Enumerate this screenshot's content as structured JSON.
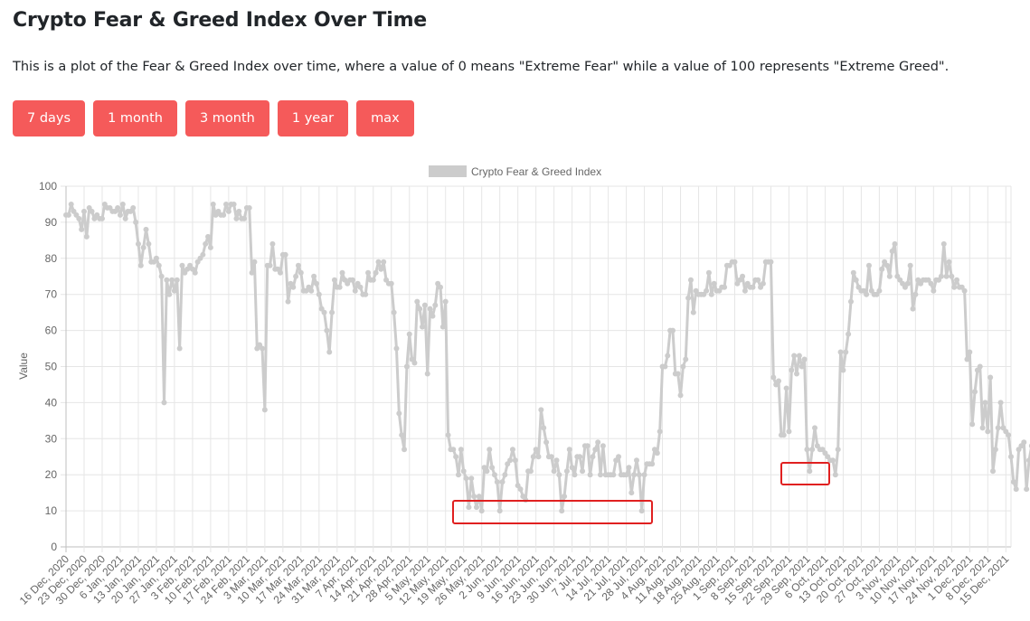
{
  "page": {
    "title": "Crypto Fear & Greed Index Over Time",
    "description": "This is a plot of the Fear & Greed Index over time, where a value of 0 means \"Extreme Fear\" while a value of 100 represents \"Extreme Greed\"."
  },
  "range_buttons": [
    "7 days",
    "1 month",
    "3 month",
    "1 year",
    "max"
  ],
  "colors": {
    "button": "#f55a5a",
    "line": "#cccccc",
    "highlight": "#e02020",
    "grid": "#e6e6e6"
  },
  "chart_data": {
    "type": "line",
    "title": "",
    "legend": {
      "label": "Crypto Fear & Greed Index",
      "position": "top-center"
    },
    "xlabel": "",
    "ylabel": "Value",
    "ylim": [
      0,
      100
    ],
    "yticks": [
      0,
      10,
      20,
      30,
      40,
      50,
      60,
      70,
      80,
      90,
      100
    ],
    "grid": true,
    "x_start": "16 Dec, 2020",
    "x_end": "17 Dec, 2021",
    "x_tick_labels": [
      "16 Dec, 2020",
      "23 Dec, 2020",
      "30 Dec, 2020",
      "6 Jan, 2021",
      "13 Jan, 2021",
      "20 Jan, 2021",
      "27 Jan, 2021",
      "3 Feb, 2021",
      "10 Feb, 2021",
      "17 Feb, 2021",
      "24 Feb, 2021",
      "3 Mar, 2021",
      "10 Mar, 2021",
      "17 Mar, 2021",
      "24 Mar, 2021",
      "31 Mar, 2021",
      "7 Apr, 2021",
      "14 Apr, 2021",
      "21 Apr, 2021",
      "28 Apr, 2021",
      "5 May, 2021",
      "12 May, 2021",
      "19 May, 2021",
      "26 May, 2021",
      "2 Jun, 2021",
      "9 Jun, 2021",
      "16 Jun, 2021",
      "23 Jun, 2021",
      "30 Jun, 2021",
      "7 Jul, 2021",
      "14 Jul, 2021",
      "21 Jul, 2021",
      "28 Jul, 2021",
      "4 Aug, 2021",
      "11 Aug, 2021",
      "18 Aug, 2021",
      "25 Aug, 2021",
      "1 Sep, 2021",
      "8 Sep, 2021",
      "15 Sep, 2021",
      "22 Sep, 2021",
      "29 Sep, 2021",
      "6 Oct, 2021",
      "13 Oct, 2021",
      "20 Oct, 2021",
      "27 Oct, 2021",
      "3 Nov, 2021",
      "10 Nov, 2021",
      "17 Nov, 2021",
      "24 Nov, 2021",
      "1 Dec, 2021",
      "8 Dec, 2021",
      "15 Dec, 2021"
    ],
    "series": [
      {
        "name": "Crypto Fear & Greed Index",
        "values": [
          92,
          92,
          95,
          93,
          92,
          91,
          88,
          93,
          86,
          94,
          93,
          91,
          92,
          91,
          91,
          95,
          94,
          94,
          93,
          93,
          94,
          92,
          95,
          91,
          93,
          93,
          94,
          90,
          84,
          78,
          83,
          88,
          84,
          79,
          79,
          80,
          78,
          75,
          40,
          74,
          70,
          74,
          71,
          74,
          55,
          78,
          76,
          77,
          78,
          77,
          76,
          79,
          80,
          81,
          84,
          86,
          83,
          95,
          92,
          93,
          92,
          92,
          95,
          93,
          95,
          95,
          91,
          93,
          91,
          91,
          94,
          94,
          76,
          79,
          55,
          56,
          55,
          38,
          78,
          78,
          84,
          77,
          77,
          76,
          81,
          81,
          68,
          73,
          72,
          75,
          78,
          76,
          71,
          71,
          72,
          71,
          75,
          73,
          70,
          66,
          65,
          60,
          54,
          65,
          74,
          72,
          72,
          76,
          74,
          73,
          74,
          74,
          71,
          73,
          72,
          70,
          70,
          76,
          74,
          74,
          76,
          79,
          77,
          79,
          74,
          73,
          73,
          65,
          55,
          37,
          31,
          27,
          50,
          59,
          52,
          51,
          68,
          66,
          61,
          67,
          48,
          66,
          64,
          67,
          73,
          72,
          61,
          68,
          31,
          27,
          27,
          25,
          20,
          27,
          21,
          19,
          11,
          19,
          14,
          11,
          14,
          10,
          22,
          21,
          27,
          22,
          20,
          18,
          10,
          18,
          20,
          23,
          24,
          27,
          24,
          17,
          16,
          14,
          13,
          21,
          21,
          25,
          27,
          25,
          38,
          33,
          29,
          25,
          25,
          21,
          24,
          20,
          10,
          14,
          21,
          27,
          22,
          20,
          25,
          25,
          21,
          28,
          28,
          20,
          25,
          27,
          29,
          20,
          28,
          20,
          20,
          20,
          20,
          24,
          25,
          20,
          20,
          20,
          22,
          15,
          20,
          24,
          20,
          10,
          20,
          23,
          23,
          23,
          27,
          26,
          32,
          50,
          50,
          53,
          60,
          60,
          48,
          48,
          42,
          50,
          52,
          69,
          74,
          65,
          71,
          70,
          70,
          70,
          71,
          76,
          70,
          73,
          71,
          71,
          72,
          72,
          78,
          78,
          79,
          79,
          73,
          74,
          75,
          71,
          73,
          72,
          72,
          74,
          74,
          72,
          73,
          79,
          79,
          79,
          47,
          45,
          46,
          31,
          31,
          44,
          32,
          49,
          53,
          48,
          53,
          50,
          52,
          27,
          21,
          27,
          33,
          28,
          27,
          27,
          26,
          25,
          24,
          24,
          20,
          27,
          54,
          49,
          54,
          59,
          68,
          76,
          74,
          72,
          71,
          71,
          70,
          78,
          71,
          70,
          70,
          71,
          77,
          79,
          78,
          75,
          82,
          84,
          75,
          74,
          73,
          72,
          73,
          78,
          66,
          70,
          74,
          73,
          74,
          74,
          74,
          73,
          71,
          74,
          74,
          75,
          84,
          75,
          79,
          75,
          72,
          74,
          72,
          72,
          71,
          52,
          54,
          34,
          43,
          49,
          50,
          33,
          40,
          32,
          47,
          21,
          27,
          33,
          40,
          33,
          32,
          31,
          25,
          18,
          16,
          27,
          28,
          29,
          16,
          24,
          28,
          28,
          21,
          28
        ]
      }
    ]
  },
  "highlight_boxes": [
    "low-fear-region-may-jul",
    "low-fear-region-sep"
  ]
}
